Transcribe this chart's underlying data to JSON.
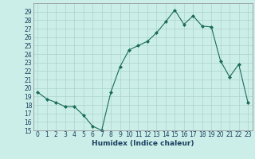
{
  "x": [
    0,
    1,
    2,
    3,
    4,
    5,
    6,
    7,
    8,
    9,
    10,
    11,
    12,
    13,
    14,
    15,
    16,
    17,
    18,
    19,
    20,
    21,
    22,
    23
  ],
  "y": [
    19.5,
    18.7,
    18.3,
    17.8,
    17.8,
    16.8,
    15.5,
    15.0,
    19.5,
    22.5,
    24.5,
    25.0,
    25.5,
    26.5,
    27.8,
    29.2,
    27.5,
    28.5,
    27.3,
    27.2,
    23.2,
    21.3,
    22.8,
    18.3
  ],
  "xlabel": "Humidex (Indice chaleur)",
  "xlim": [
    -0.5,
    23.5
  ],
  "ylim": [
    15,
    30
  ],
  "yticks": [
    15,
    16,
    17,
    18,
    19,
    20,
    21,
    22,
    23,
    24,
    25,
    26,
    27,
    28,
    29
  ],
  "xticks": [
    0,
    1,
    2,
    3,
    4,
    5,
    6,
    7,
    8,
    9,
    10,
    11,
    12,
    13,
    14,
    15,
    16,
    17,
    18,
    19,
    20,
    21,
    22,
    23
  ],
  "line_color": "#1a6b5a",
  "marker_color": "#1a6b5a",
  "bg_color": "#cceee8",
  "grid_color": "#aad4cc",
  "xlabel_color": "#1a4060",
  "tick_color": "#1a4060",
  "xlabel_fontsize": 6.5,
  "tick_fontsize": 5.5
}
